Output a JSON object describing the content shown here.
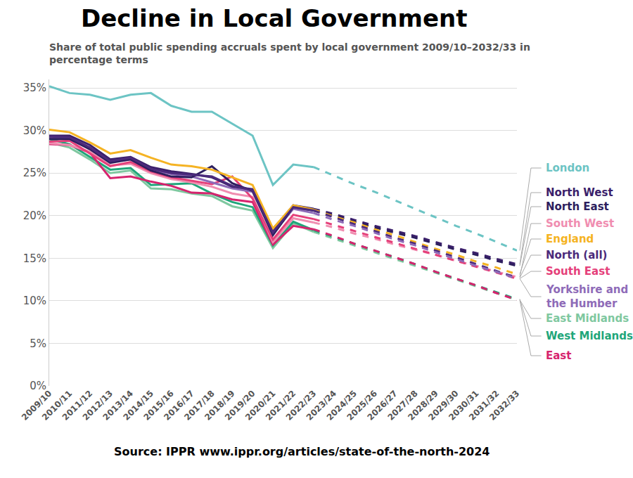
{
  "chart_data": {
    "type": "line",
    "title": "Decline in Local Government",
    "subtitle": "Share of total public spending accruals spent by local government 2009/10–2032/33 in percentage terms",
    "annotations": [
      "Source: IPPR www.ippr.org/articles/state-of-the-north-2024"
    ],
    "categories": [
      "2009/10",
      "2010/11",
      "2011/12",
      "2012/13",
      "2013/14",
      "2014/15",
      "2015/16",
      "2016/17",
      "2017/18",
      "2018/19",
      "2019/20",
      "2020/21",
      "2021/22",
      "2022/23",
      "2023/24",
      "2024/25",
      "2025/26",
      "2026/27",
      "2027/28",
      "2028/29",
      "2029/30",
      "2030/31",
      "2031/32",
      "2032/33"
    ],
    "ylim": [
      0,
      36
    ],
    "yticks": [
      {
        "value": 0,
        "label": "0%"
      },
      {
        "value": 5,
        "label": "5%"
      },
      {
        "value": 10,
        "label": "10%"
      },
      {
        "value": 15,
        "label": "15%"
      },
      {
        "value": 20,
        "label": "20%"
      },
      {
        "value": 25,
        "label": "25%"
      },
      {
        "value": 30,
        "label": "30%"
      },
      {
        "value": 35,
        "label": "35%"
      }
    ],
    "grid": true,
    "series": [
      {
        "name": "London",
        "color": "#6cc4c4",
        "line_style": "dashed",
        "values": [
          null,
          null,
          null,
          null,
          null,
          null,
          null,
          null,
          null,
          null,
          null,
          null,
          null,
          25.7,
          24.7,
          23.7,
          22.8,
          21.8,
          20.8,
          19.8,
          18.8,
          17.9,
          16.9,
          15.9
        ]
      },
      {
        "name": "North West",
        "color": "#3b1f6b",
        "line_style": "dashed",
        "values": [
          null,
          null,
          null,
          null,
          null,
          null,
          null,
          null,
          null,
          null,
          null,
          null,
          null,
          20.8,
          20.2,
          19.5,
          18.8,
          18.2,
          17.6,
          16.9,
          16.2,
          15.6,
          14.9,
          14.3
        ]
      },
      {
        "name": "North East",
        "color": "#2d1e5e",
        "line_style": "dashed",
        "values": [
          null,
          null,
          null,
          null,
          null,
          null,
          null,
          null,
          null,
          null,
          null,
          null,
          null,
          20.6,
          20.0,
          19.3,
          18.6,
          18.0,
          17.4,
          16.7,
          16.0,
          15.4,
          14.7,
          14.1
        ]
      },
      {
        "name": "South West",
        "color": "#f08db0",
        "line_style": "dashed",
        "values": [
          null,
          null,
          null,
          null,
          null,
          null,
          null,
          null,
          null,
          null,
          null,
          null,
          null,
          19.2,
          18.6,
          17.9,
          17.3,
          16.6,
          16.0,
          15.4,
          14.7,
          14.1,
          13.4,
          12.8
        ]
      },
      {
        "name": "England",
        "color": "#f5b323",
        "line_style": "dashed",
        "values": [
          null,
          null,
          null,
          null,
          null,
          null,
          null,
          null,
          null,
          null,
          null,
          null,
          null,
          20.7,
          19.9,
          19.2,
          18.4,
          17.7,
          16.9,
          16.1,
          15.4,
          14.6,
          13.9,
          13.1
        ]
      },
      {
        "name": "North (all)",
        "color": "#4b2a7b",
        "line_style": "dashed",
        "values": [
          null,
          null,
          null,
          null,
          null,
          null,
          null,
          null,
          null,
          null,
          null,
          null,
          null,
          20.6,
          19.8,
          19.0,
          18.2,
          17.4,
          16.7,
          15.9,
          15.1,
          14.3,
          13.5,
          12.7
        ]
      },
      {
        "name": "South East",
        "color": "#e5407a",
        "line_style": "dashed",
        "values": [
          null,
          null,
          null,
          null,
          null,
          null,
          null,
          null,
          null,
          null,
          null,
          null,
          null,
          19.6,
          18.9,
          18.2,
          17.5,
          16.8,
          16.1,
          15.4,
          14.7,
          14.0,
          13.3,
          12.6
        ]
      },
      {
        "name": "Yorkshire and the Humber",
        "color": "#8e6bb8",
        "line_style": "dashed",
        "values": [
          null,
          null,
          null,
          null,
          null,
          null,
          null,
          null,
          null,
          null,
          null,
          null,
          null,
          20.3,
          19.5,
          18.8,
          18.0,
          17.2,
          16.5,
          15.7,
          14.9,
          14.1,
          13.4,
          12.6
        ]
      },
      {
        "name": "East Midlands",
        "color": "#7fc8a0",
        "line_style": "dashed",
        "values": [
          null,
          null,
          null,
          null,
          null,
          null,
          null,
          null,
          null,
          null,
          null,
          null,
          null,
          18.1,
          17.3,
          16.5,
          15.7,
          14.9,
          14.1,
          13.3,
          12.5,
          11.7,
          10.9,
          10.1
        ]
      },
      {
        "name": "West Midlands",
        "color": "#1fa67a",
        "line_style": "dashed",
        "values": [
          null,
          null,
          null,
          null,
          null,
          null,
          null,
          null,
          null,
          null,
          null,
          null,
          null,
          18.3,
          17.5,
          16.7,
          15.9,
          15.1,
          14.3,
          13.4,
          12.6,
          11.8,
          11.0,
          10.2
        ]
      },
      {
        "name": "East",
        "color": "#d6246e",
        "line_style": "dashed",
        "values": [
          null,
          null,
          null,
          null,
          null,
          null,
          null,
          null,
          null,
          null,
          null,
          null,
          null,
          18.4,
          17.6,
          16.7,
          15.9,
          15.1,
          14.3,
          13.4,
          12.6,
          11.8,
          10.9,
          10.1
        ]
      },
      {
        "name": "London",
        "color": "#6cc4c4",
        "line_style": "solid",
        "values": [
          35.2,
          34.4,
          34.2,
          33.6,
          34.2,
          34.4,
          32.9,
          32.2,
          32.2,
          30.8,
          29.4,
          23.6,
          26.0,
          25.7,
          null,
          null,
          null,
          null,
          null,
          null,
          null,
          null,
          null,
          null
        ]
      },
      {
        "name": "East Midlands",
        "color": "#7fc8a0",
        "line_style": "solid",
        "values": [
          28.6,
          28.0,
          26.6,
          25.0,
          25.3,
          23.2,
          23.1,
          22.6,
          22.3,
          21.1,
          20.6,
          16.2,
          19.1,
          18.1,
          null,
          null,
          null,
          null,
          null,
          null,
          null,
          null,
          null,
          null
        ]
      },
      {
        "name": "West Midlands",
        "color": "#1fa67a",
        "line_style": "solid",
        "values": [
          29.0,
          28.4,
          26.9,
          25.4,
          25.6,
          23.6,
          23.7,
          23.8,
          22.6,
          21.6,
          21.0,
          16.5,
          19.3,
          18.3,
          null,
          null,
          null,
          null,
          null,
          null,
          null,
          null,
          null,
          null
        ]
      },
      {
        "name": "East",
        "color": "#d6246e",
        "line_style": "solid",
        "values": [
          28.4,
          28.3,
          27.4,
          24.4,
          24.6,
          24.0,
          23.5,
          22.7,
          22.6,
          21.9,
          21.6,
          16.6,
          18.8,
          18.4,
          null,
          null,
          null,
          null,
          null,
          null,
          null,
          null,
          null,
          null
        ]
      },
      {
        "name": "South West",
        "color": "#f08db0",
        "line_style": "solid",
        "values": [
          28.5,
          28.3,
          27.5,
          25.9,
          26.1,
          25.0,
          24.3,
          23.9,
          23.4,
          22.6,
          22.2,
          16.9,
          19.7,
          19.2,
          null,
          null,
          null,
          null,
          null,
          null,
          null,
          null,
          null,
          null
        ]
      },
      {
        "name": "South East",
        "color": "#e5407a",
        "line_style": "solid",
        "values": [
          28.7,
          28.8,
          27.3,
          25.8,
          26.3,
          25.2,
          24.5,
          24.1,
          23.7,
          24.6,
          22.0,
          17.2,
          20.1,
          19.6,
          null,
          null,
          null,
          null,
          null,
          null,
          null,
          null,
          null,
          null
        ]
      },
      {
        "name": "Yorkshire and the Humber",
        "color": "#8e6bb8",
        "line_style": "solid",
        "values": [
          29.2,
          29.0,
          27.9,
          26.3,
          26.6,
          25.4,
          24.9,
          24.6,
          23.9,
          23.2,
          22.8,
          17.9,
          20.8,
          20.3,
          null,
          null,
          null,
          null,
          null,
          null,
          null,
          null,
          null,
          null
        ]
      },
      {
        "name": "North East",
        "color": "#2d1e5e",
        "line_style": "solid",
        "values": [
          29.0,
          29.0,
          27.8,
          26.2,
          26.6,
          25.3,
          24.6,
          24.5,
          25.8,
          23.8,
          22.9,
          17.7,
          21.0,
          20.6,
          null,
          null,
          null,
          null,
          null,
          null,
          null,
          null,
          null,
          null
        ]
      },
      {
        "name": "North West",
        "color": "#3b1f6b",
        "line_style": "solid",
        "values": [
          29.4,
          29.4,
          28.3,
          26.6,
          26.9,
          25.7,
          25.2,
          24.9,
          24.5,
          23.4,
          23.1,
          18.3,
          21.2,
          20.8,
          null,
          null,
          null,
          null,
          null,
          null,
          null,
          null,
          null,
          null
        ]
      },
      {
        "name": "England",
        "color": "#f5b323",
        "line_style": "solid",
        "values": [
          30.1,
          29.8,
          28.6,
          27.3,
          27.7,
          26.8,
          26.0,
          25.8,
          25.4,
          24.5,
          23.6,
          18.5,
          21.2,
          20.7,
          null,
          null,
          null,
          null,
          null,
          null,
          null,
          null,
          null,
          null
        ]
      },
      {
        "name": "North (all)",
        "color": "#4b2a7b",
        "line_style": "solid",
        "values": [
          29.3,
          29.2,
          28.0,
          26.4,
          26.8,
          25.5,
          25.0,
          24.8,
          24.6,
          23.5,
          23.0,
          18.0,
          21.0,
          20.6,
          null,
          null,
          null,
          null,
          null,
          null,
          null,
          null,
          null,
          null
        ]
      }
    ]
  }
}
